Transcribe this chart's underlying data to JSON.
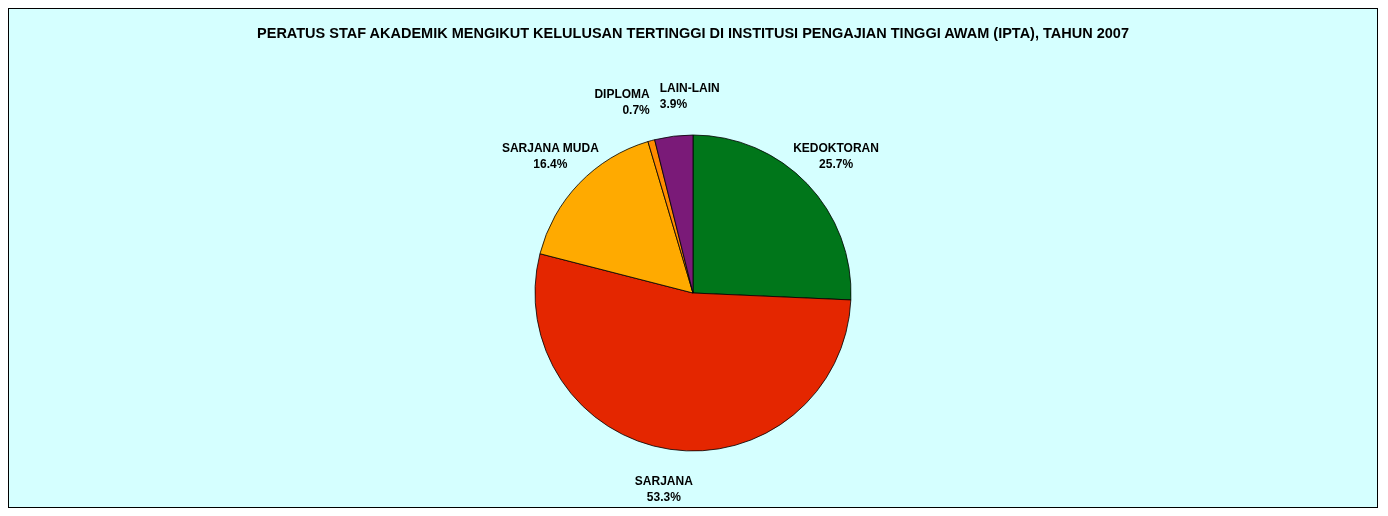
{
  "chart_data": {
    "type": "pie",
    "title": "PERATUS STAF AKADEMIK MENGIKUT KELULUSAN TERTINGGI DI INSTITUSI PENGAJIAN TINGGI AWAM (IPTA), TAHUN 2007",
    "categories": [
      "KEDOKTORAN",
      "SARJANA",
      "SARJANA MUDA",
      "DIPLOMA",
      "LAIN-LAIN"
    ],
    "values": [
      25.7,
      53.3,
      16.4,
      0.7,
      3.9
    ],
    "colors": [
      "#00761a",
      "#e42600",
      "#ffaa00",
      "#ff8a00",
      "#7a1a78"
    ],
    "value_labels": [
      "25.7%",
      "53.3%",
      "16.4%",
      "0.7%",
      "3.9%"
    ]
  }
}
